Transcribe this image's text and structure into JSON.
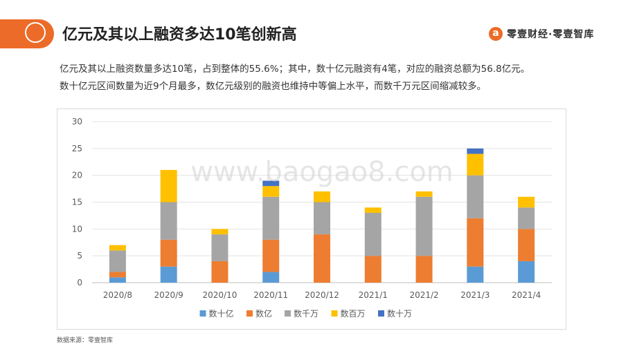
{
  "header": {
    "title": "亿元及其以上融资多达10笔创新高",
    "brand": "零壹财经·零壹智库",
    "brand_logo_glyph": "a",
    "accent_color": "#ec6b28"
  },
  "summary": {
    "line1": "亿元及其以上融资数量多达10笔，占到整体的55.6%；其中，数十亿元融资有4笔，对应的融资总额为56.8亿元。",
    "line2": "数十亿元区间数量为近9个月最多，数亿元级别的融资也维持中等偏上水平，而数千万元区间缩减较多。"
  },
  "watermark": "www.baogao8.com",
  "source": "数据来源：零壹智库",
  "chart_data": {
    "type": "bar",
    "stacked": true,
    "categories": [
      "2020/8",
      "2020/9",
      "2020/10",
      "2020/11",
      "2020/12",
      "2021/1",
      "2021/2",
      "2021/3",
      "2021/4"
    ],
    "series": [
      {
        "name": "数十亿",
        "color": "#5b9bd5",
        "values": [
          1,
          3,
          0,
          2,
          0,
          0,
          0,
          3,
          4
        ]
      },
      {
        "name": "数亿",
        "color": "#ed7d31",
        "values": [
          1,
          5,
          4,
          6,
          9,
          5,
          5,
          9,
          6
        ]
      },
      {
        "name": "数千万",
        "color": "#a5a5a5",
        "values": [
          4,
          7,
          5,
          8,
          6,
          8,
          11,
          8,
          4
        ]
      },
      {
        "name": "数百万",
        "color": "#ffc000",
        "values": [
          1,
          6,
          1,
          2,
          2,
          1,
          1,
          4,
          2
        ]
      },
      {
        "name": "数十万",
        "color": "#4472c4",
        "values": [
          0,
          0,
          0,
          1,
          0,
          0,
          0,
          1,
          0
        ]
      }
    ],
    "ylim": [
      0,
      30
    ],
    "yticks": [
      0,
      5,
      10,
      15,
      20,
      25,
      30
    ],
    "grid": true,
    "legend_position": "bottom"
  }
}
